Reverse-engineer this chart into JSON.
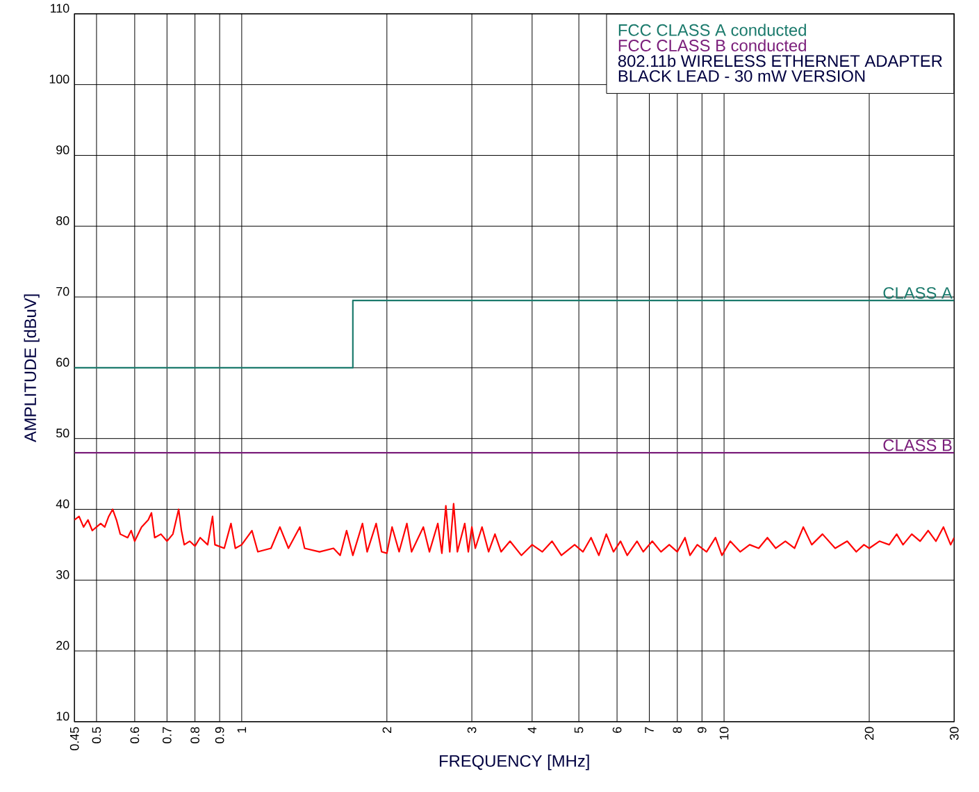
{
  "chart_data": {
    "type": "line",
    "xlabel": "FREQUENCY [MHz]",
    "ylabel": "AMPLITUDE [dBuV]",
    "log": "x",
    "grid": true,
    "legend": "top right",
    "marker": "none",
    "line_style": "solid",
    "xlim": [
      0.45,
      30
    ],
    "ylim": [
      10,
      110
    ],
    "xticks": [
      0.45,
      0.5,
      0.6,
      0.7,
      0.8,
      0.9,
      1,
      2,
      3,
      4,
      5,
      6,
      7,
      8,
      9,
      10,
      20,
      30
    ],
    "yticks": [
      10,
      20,
      30,
      40,
      50,
      60,
      70,
      80,
      90,
      100,
      110
    ],
    "series": [
      {
        "name": "FCC CLASS A conducted",
        "type": "step",
        "color": "#1b7a6c",
        "x": [
          0.45,
          1.7,
          30
        ],
        "values": [
          60,
          69.5,
          69.5
        ]
      },
      {
        "name": "FCC CLASS B conducted",
        "type": "line",
        "color": "#7b1f7b",
        "x": [
          0.45,
          30
        ],
        "values": [
          48,
          48
        ]
      },
      {
        "color": "#ff0000",
        "x": [
          0.45,
          0.46,
          0.47,
          0.48,
          0.49,
          0.5,
          0.51,
          0.52,
          0.53,
          0.54,
          0.55,
          0.56,
          0.58,
          0.59,
          0.6,
          0.62,
          0.64,
          0.65,
          0.66,
          0.68,
          0.7,
          0.72,
          0.74,
          0.75,
          0.76,
          0.78,
          0.8,
          0.82,
          0.85,
          0.87,
          0.88,
          0.92,
          0.95,
          0.97,
          1.0,
          1.05,
          1.08,
          1.15,
          1.2,
          1.25,
          1.32,
          1.35,
          1.45,
          1.55,
          1.6,
          1.65,
          1.7,
          1.78,
          1.82,
          1.9,
          1.95,
          2.0,
          2.05,
          2.12,
          2.2,
          2.25,
          2.38,
          2.45,
          2.55,
          2.6,
          2.65,
          2.7,
          2.75,
          2.8,
          2.9,
          2.95,
          3.0,
          3.05,
          3.15,
          3.25,
          3.35,
          3.45,
          3.6,
          3.8,
          4.0,
          4.2,
          4.4,
          4.6,
          4.9,
          5.1,
          5.3,
          5.5,
          5.7,
          5.9,
          6.1,
          6.3,
          6.6,
          6.8,
          7.1,
          7.4,
          7.7,
          8.0,
          8.3,
          8.5,
          8.8,
          9.2,
          9.6,
          9.9,
          10.3,
          10.8,
          11.3,
          11.8,
          12.3,
          12.8,
          13.4,
          14.0,
          14.6,
          15.2,
          16,
          17,
          18,
          18.8,
          19.5,
          20,
          21,
          22,
          22.8,
          23.5,
          24.5,
          25.5,
          26.5,
          27.5,
          28.5,
          29.5,
          30
        ],
        "values": [
          38.5,
          39,
          37.5,
          38.5,
          37,
          37.5,
          38,
          37.5,
          39,
          40,
          38.5,
          36.5,
          36,
          37,
          35.5,
          37.5,
          38.5,
          39.5,
          36,
          36.5,
          35.5,
          36.5,
          40,
          37,
          35,
          35.5,
          34.8,
          36,
          35,
          39,
          35,
          34.5,
          38,
          34.5,
          35,
          37,
          34,
          34.5,
          37.5,
          34.5,
          37.5,
          34.5,
          34,
          34.5,
          33.5,
          37,
          33.5,
          38,
          34,
          38,
          34,
          33.8,
          37.5,
          34,
          38,
          34,
          37.5,
          34,
          38,
          33.8,
          40.5,
          34,
          40.8,
          34,
          38,
          34,
          37.5,
          34.5,
          37.5,
          34,
          36.5,
          34,
          35.5,
          33.5,
          35,
          34,
          35.5,
          33.5,
          35,
          34,
          36,
          33.5,
          36.5,
          34,
          35.5,
          33.5,
          35.5,
          34,
          35.5,
          34,
          35,
          34,
          36,
          33.5,
          35,
          34,
          36,
          33.5,
          35.5,
          34,
          35,
          34.5,
          36,
          34.5,
          35.5,
          34.5,
          37.5,
          35,
          36.5,
          34.5,
          35.5,
          34,
          35,
          34.5,
          35.5,
          35,
          36.5,
          35,
          36.5,
          35.5,
          37,
          35.5,
          37.5,
          35,
          36
        ]
      }
    ],
    "annotations": [
      {
        "text": "CLASS A",
        "x": 30,
        "y": 69.5
      },
      {
        "text": "CLASS B",
        "x": 30,
        "y": 48
      },
      "802.11b WIRELESS ETHERNET ADAPTER",
      "BLACK LEAD - 30 mW VERSION"
    ]
  }
}
